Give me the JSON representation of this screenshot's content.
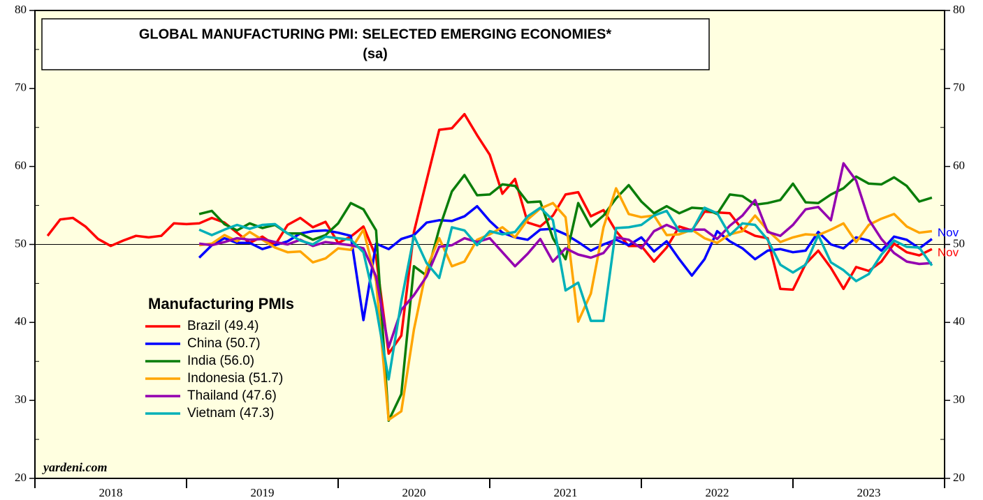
{
  "chart_data": {
    "type": "line",
    "title": "GLOBAL MANUFACTURING PMI: SELECTED EMERGING ECONOMIES*",
    "subtitle": "(sa)",
    "legend_title": "Manufacturing PMIs",
    "source": "yardeni.com",
    "xlim": [
      2018,
      2024
    ],
    "xticks": [
      2018,
      2019,
      2020,
      2021,
      2022,
      2023,
      2024
    ],
    "xlabels": [
      "2018",
      "2019",
      "2020",
      "2021",
      "2022",
      "2023"
    ],
    "ylim": [
      20,
      80
    ],
    "yticks": [
      20,
      30,
      40,
      50,
      60,
      70,
      80
    ],
    "y2lim": [
      20,
      80
    ],
    "y2ticks": [
      20,
      30,
      40,
      50,
      60,
      70,
      80
    ],
    "reference_line": 50,
    "background": "#ffffe0",
    "series": [
      {
        "name": "Brazil (49.4)",
        "color": "#ff0000",
        "end_label": "Nov",
        "values": [
          51.1,
          53.2,
          53.4,
          52.3,
          50.7,
          49.8,
          50.5,
          51.1,
          50.9,
          51.1,
          52.7,
          52.6,
          52.7,
          53.4,
          52.8,
          51.5,
          50.2,
          51.0,
          49.9,
          52.5,
          53.4,
          52.2,
          52.9,
          50.2,
          51.0,
          52.3,
          48.4,
          36.0,
          38.3,
          51.6,
          58.2,
          64.7,
          64.9,
          66.7,
          64.0,
          61.5,
          56.5,
          58.4,
          52.8,
          52.3,
          53.7,
          56.4,
          56.7,
          53.6,
          54.4,
          51.7,
          49.8,
          49.8,
          47.8,
          49.6,
          52.3,
          51.8,
          54.2,
          54.1,
          54.0,
          51.9,
          51.1,
          50.8,
          44.3,
          44.2,
          47.5,
          49.2,
          47.0,
          44.3,
          47.1,
          46.6,
          47.8,
          50.1,
          49.0,
          48.6,
          49.4
        ]
      },
      {
        "name": "China (50.7)",
        "color": "#0000ff",
        "end_label": "Nov",
        "values": [
          null,
          null,
          null,
          null,
          null,
          null,
          null,
          null,
          null,
          null,
          null,
          null,
          48.3,
          49.9,
          50.8,
          50.2,
          50.2,
          49.4,
          49.9,
          50.4,
          51.4,
          51.7,
          51.8,
          51.5,
          51.1,
          40.3,
          50.1,
          49.4,
          50.7,
          51.2,
          52.8,
          53.1,
          53.0,
          53.6,
          54.9,
          53.0,
          51.5,
          50.9,
          50.6,
          51.9,
          52.0,
          51.3,
          50.3,
          49.2,
          50.0,
          50.6,
          49.9,
          50.9,
          49.1,
          50.4,
          48.1,
          46.0,
          48.1,
          51.7,
          50.4,
          49.5,
          48.1,
          49.2,
          49.4,
          49.0,
          49.2,
          51.6,
          50.0,
          49.5,
          50.9,
          50.5,
          49.2,
          51.0,
          50.6,
          49.5,
          50.7
        ]
      },
      {
        "name": "India (56.0)",
        "color": "#0a7d0a",
        "values": [
          null,
          null,
          null,
          null,
          null,
          null,
          null,
          null,
          null,
          null,
          null,
          null,
          53.9,
          54.3,
          52.6,
          51.8,
          52.7,
          52.1,
          52.5,
          51.4,
          51.4,
          50.6,
          51.2,
          52.7,
          55.3,
          54.5,
          51.8,
          27.4,
          30.8,
          47.2,
          46.0,
          52.0,
          56.8,
          58.9,
          56.3,
          56.4,
          57.7,
          57.5,
          55.4,
          55.5,
          50.8,
          48.1,
          55.3,
          52.3,
          53.7,
          55.9,
          57.6,
          55.5,
          54.0,
          54.9,
          54.0,
          54.7,
          54.6,
          53.9,
          56.4,
          56.2,
          55.1,
          55.3,
          55.7,
          57.8,
          55.4,
          55.3,
          56.4,
          57.2,
          58.7,
          57.8,
          57.7,
          58.6,
          57.5,
          55.5,
          56.0
        ]
      },
      {
        "name": "Indonesia (51.7)",
        "color": "#ffa500",
        "values": [
          null,
          null,
          null,
          null,
          null,
          null,
          null,
          null,
          null,
          null,
          null,
          null,
          49.9,
          50.1,
          51.2,
          50.4,
          51.6,
          50.6,
          49.6,
          49.0,
          49.1,
          47.7,
          48.2,
          49.5,
          49.3,
          51.9,
          45.3,
          27.5,
          28.6,
          39.1,
          46.9,
          50.8,
          47.2,
          47.8,
          50.6,
          51.3,
          52.2,
          50.9,
          53.2,
          54.6,
          55.3,
          53.5,
          40.1,
          43.7,
          52.2,
          57.2,
          53.9,
          53.5,
          53.7,
          51.2,
          51.3,
          51.9,
          50.8,
          50.2,
          51.3,
          51.7,
          53.7,
          51.8,
          50.3,
          50.9,
          51.3,
          51.2,
          51.9,
          52.7,
          50.3,
          52.5,
          53.3,
          53.9,
          52.3,
          51.5,
          51.7
        ]
      },
      {
        "name": "Thailand (47.6)",
        "color": "#9400b0",
        "values": [
          null,
          null,
          null,
          null,
          null,
          null,
          null,
          null,
          null,
          null,
          null,
          null,
          50.1,
          49.9,
          50.3,
          50.8,
          50.6,
          50.7,
          50.3,
          50.0,
          50.6,
          49.8,
          50.3,
          50.1,
          49.9,
          49.5,
          45.9,
          36.8,
          41.6,
          43.5,
          45.9,
          49.7,
          49.9,
          50.8,
          50.3,
          50.8,
          49.0,
          47.2,
          48.8,
          50.7,
          47.8,
          49.5,
          48.7,
          48.3,
          48.9,
          50.9,
          50.6,
          49.5,
          51.7,
          52.5,
          51.8,
          51.9,
          51.9,
          50.7,
          52.4,
          53.7,
          55.7,
          51.6,
          51.1,
          52.5,
          54.5,
          54.8,
          53.1,
          60.4,
          58.2,
          53.2,
          50.7,
          48.9,
          47.8,
          47.5,
          47.6
        ]
      },
      {
        "name": "Vietnam (47.3)",
        "color": "#00b0b8",
        "values": [
          null,
          null,
          null,
          null,
          null,
          null,
          null,
          null,
          null,
          null,
          null,
          null,
          51.9,
          51.2,
          51.9,
          52.5,
          52.0,
          52.5,
          52.6,
          51.4,
          50.5,
          50.0,
          51.0,
          50.8,
          50.6,
          49.0,
          41.9,
          32.7,
          42.7,
          51.1,
          47.6,
          45.7,
          52.2,
          51.8,
          49.9,
          51.7,
          51.3,
          51.6,
          53.6,
          54.7,
          53.1,
          44.1,
          45.1,
          40.2,
          40.2,
          52.1,
          52.2,
          52.5,
          53.7,
          54.3,
          51.7,
          51.7,
          54.7,
          54.0,
          51.2,
          52.7,
          52.5,
          50.6,
          47.4,
          46.4,
          47.4,
          51.2,
          47.7,
          46.7,
          45.3,
          46.2,
          48.7,
          50.5,
          49.7,
          49.6,
          47.3
        ]
      }
    ]
  }
}
